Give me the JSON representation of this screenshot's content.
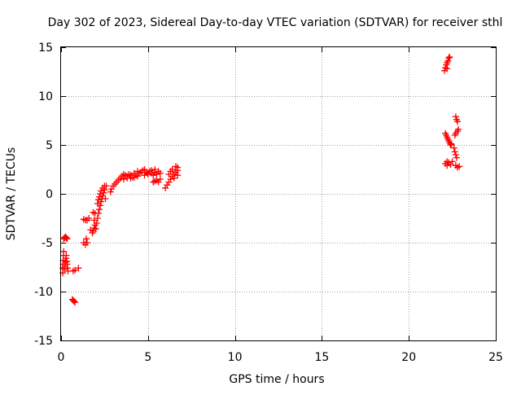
{
  "colors": {
    "background": "#ffffff",
    "axis": "#000000",
    "grid": "#a0a0a0",
    "series": "#ff0000"
  },
  "chart_data": {
    "type": "scatter",
    "title": "Day 302 of 2023, Sidereal Day-to-day VTEC variation (SDTVAR) for receiver sthl",
    "xlabel": "GPS time / hours",
    "ylabel": "SDTVAR / TECUs",
    "xlim": [
      0,
      25
    ],
    "ylim": [
      -15,
      15
    ],
    "grid": true,
    "marker": "plus",
    "x_ticks": [
      0,
      5,
      10,
      15,
      20,
      25
    ],
    "x_tick_labels": [
      "0",
      "5",
      "10",
      "15",
      "20",
      "25"
    ],
    "y_ticks": [
      -15,
      -10,
      -5,
      0,
      5,
      10,
      15
    ],
    "y_tick_labels": [
      "-15",
      "-10",
      "-5",
      "0",
      "5",
      "10",
      "15"
    ],
    "series": [
      {
        "name": "SDTVAR",
        "points": [
          [
            0.1,
            -8.1
          ],
          [
            0.1,
            -7.6
          ],
          [
            0.12,
            -7.2
          ],
          [
            0.12,
            -6.8
          ],
          [
            0.14,
            -6.3
          ],
          [
            0.15,
            -5.9
          ],
          [
            0.2,
            -7.7
          ],
          [
            0.22,
            -7.4
          ],
          [
            0.25,
            -7.0
          ],
          [
            0.28,
            -6.6
          ],
          [
            0.3,
            -6.3
          ],
          [
            0.33,
            -6.9
          ],
          [
            0.35,
            -7.2
          ],
          [
            0.38,
            -7.6
          ],
          [
            0.4,
            -7.9
          ],
          [
            0.15,
            -4.6
          ],
          [
            0.2,
            -4.5
          ],
          [
            0.25,
            -4.4
          ],
          [
            0.3,
            -4.5
          ],
          [
            0.35,
            -4.6
          ],
          [
            0.65,
            -10.8
          ],
          [
            0.7,
            -10.9
          ],
          [
            0.75,
            -11.0
          ],
          [
            0.8,
            -11.1
          ],
          [
            0.7,
            -7.9
          ],
          [
            0.8,
            -7.8
          ],
          [
            1.0,
            -7.6
          ],
          [
            1.3,
            -5.0
          ],
          [
            1.4,
            -5.2
          ],
          [
            1.5,
            -5.0
          ],
          [
            1.45,
            -4.6
          ],
          [
            1.3,
            -2.6
          ],
          [
            1.4,
            -2.7
          ],
          [
            1.5,
            -2.7
          ],
          [
            1.6,
            -2.5
          ],
          [
            1.7,
            -3.7
          ],
          [
            1.8,
            -4.0
          ],
          [
            1.85,
            -3.8
          ],
          [
            1.9,
            -3.5
          ],
          [
            1.9,
            -2.7
          ],
          [
            1.95,
            -2.0
          ],
          [
            1.85,
            -1.9
          ],
          [
            1.95,
            -3.2
          ],
          [
            2.0,
            -3.6
          ],
          [
            2.05,
            -3.0
          ],
          [
            2.1,
            -2.5
          ],
          [
            2.15,
            -2.0
          ],
          [
            2.2,
            -1.6
          ],
          [
            2.25,
            -1.2
          ],
          [
            2.3,
            -0.8
          ],
          [
            2.35,
            -0.5
          ],
          [
            2.4,
            -0.2
          ],
          [
            2.45,
            0.1
          ],
          [
            2.5,
            0.4
          ],
          [
            2.1,
            -1.0
          ],
          [
            2.15,
            -0.6
          ],
          [
            2.2,
            -0.3
          ],
          [
            2.25,
            0.0
          ],
          [
            2.3,
            0.3
          ],
          [
            2.4,
            0.6
          ],
          [
            2.5,
            0.8
          ],
          [
            2.6,
            0.8
          ],
          [
            2.55,
            -0.5
          ],
          [
            2.85,
            0.2
          ],
          [
            2.9,
            0.5
          ],
          [
            3.0,
            0.8
          ],
          [
            3.1,
            1.0
          ],
          [
            3.2,
            1.2
          ],
          [
            3.3,
            1.4
          ],
          [
            3.4,
            1.6
          ],
          [
            3.5,
            1.8
          ],
          [
            3.6,
            2.0
          ],
          [
            3.7,
            1.9
          ],
          [
            3.8,
            1.8
          ],
          [
            3.9,
            2.0
          ],
          [
            4.0,
            1.9
          ],
          [
            4.1,
            1.7
          ],
          [
            4.2,
            2.1
          ],
          [
            4.3,
            1.9
          ],
          [
            4.4,
            1.8
          ],
          [
            4.5,
            2.1
          ],
          [
            3.6,
            1.5
          ],
          [
            3.8,
            1.6
          ],
          [
            4.0,
            1.6
          ],
          [
            4.2,
            1.7
          ],
          [
            4.4,
            2.3
          ],
          [
            4.6,
            2.2
          ],
          [
            4.7,
            2.4
          ],
          [
            4.8,
            2.5
          ],
          [
            4.9,
            2.2
          ],
          [
            5.0,
            2.0
          ],
          [
            5.1,
            2.3
          ],
          [
            5.2,
            2.1
          ],
          [
            5.3,
            1.9
          ],
          [
            5.4,
            2.2
          ],
          [
            5.5,
            2.0
          ],
          [
            5.6,
            2.3
          ],
          [
            5.7,
            2.1
          ],
          [
            4.8,
            1.9
          ],
          [
            5.0,
            2.1
          ],
          [
            5.2,
            2.4
          ],
          [
            5.4,
            2.5
          ],
          [
            5.3,
            1.2
          ],
          [
            5.4,
            1.3
          ],
          [
            5.5,
            1.4
          ],
          [
            5.6,
            1.2
          ],
          [
            5.7,
            1.5
          ],
          [
            6.0,
            0.6
          ],
          [
            6.1,
            0.9
          ],
          [
            6.2,
            1.2
          ],
          [
            6.3,
            1.5
          ],
          [
            6.4,
            1.8
          ],
          [
            6.5,
            2.0
          ],
          [
            6.6,
            2.2
          ],
          [
            6.7,
            2.4
          ],
          [
            6.2,
            2.0
          ],
          [
            6.4,
            2.5
          ],
          [
            6.6,
            2.8
          ],
          [
            6.7,
            2.7
          ],
          [
            6.3,
            2.3
          ],
          [
            6.5,
            1.6
          ],
          [
            6.7,
            1.9
          ],
          [
            22.05,
            12.6
          ],
          [
            22.1,
            12.9
          ],
          [
            22.15,
            13.2
          ],
          [
            22.2,
            13.4
          ],
          [
            22.25,
            13.6
          ],
          [
            22.3,
            13.9
          ],
          [
            22.35,
            14.0
          ],
          [
            22.2,
            12.8
          ],
          [
            22.1,
            6.2
          ],
          [
            22.15,
            6.0
          ],
          [
            22.2,
            5.8
          ],
          [
            22.25,
            5.6
          ],
          [
            22.3,
            5.4
          ],
          [
            22.35,
            5.2
          ],
          [
            22.4,
            5.0
          ],
          [
            22.45,
            5.1
          ],
          [
            22.1,
            3.1
          ],
          [
            22.2,
            2.9
          ],
          [
            22.3,
            3.2
          ],
          [
            22.4,
            3.0
          ],
          [
            22.5,
            3.3
          ],
          [
            22.2,
            3.3
          ],
          [
            22.6,
            4.7
          ],
          [
            22.65,
            4.3
          ],
          [
            22.7,
            4.0
          ],
          [
            22.75,
            3.7
          ],
          [
            22.65,
            6.0
          ],
          [
            22.7,
            6.2
          ],
          [
            22.8,
            6.4
          ],
          [
            22.85,
            6.6
          ],
          [
            22.7,
            7.9
          ],
          [
            22.75,
            7.6
          ],
          [
            22.8,
            7.4
          ],
          [
            22.7,
            2.9
          ],
          [
            22.8,
            2.7
          ],
          [
            22.9,
            2.8
          ]
        ]
      }
    ]
  }
}
